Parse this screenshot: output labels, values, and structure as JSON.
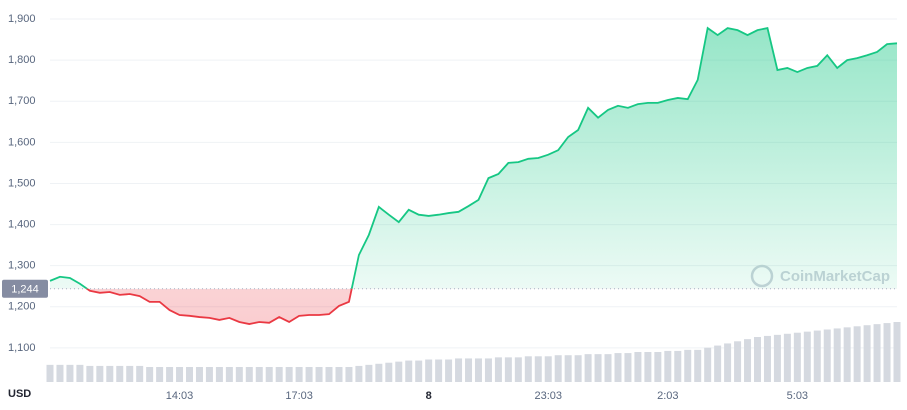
{
  "chart_data": {
    "type": "line",
    "currency": "USD",
    "watermark": "CoinMarketCap",
    "categories": [
      null,
      null,
      null,
      null,
      null,
      null,
      null,
      null,
      null,
      null,
      null,
      null,
      null,
      "14:03",
      null,
      null,
      null,
      null,
      null,
      null,
      null,
      null,
      null,
      null,
      null,
      "17:03",
      null,
      null,
      null,
      null,
      null,
      null,
      null,
      null,
      null,
      null,
      null,
      null,
      "8",
      null,
      null,
      null,
      null,
      null,
      null,
      null,
      null,
      null,
      null,
      null,
      "23:03",
      null,
      null,
      null,
      null,
      null,
      null,
      null,
      null,
      null,
      null,
      null,
      "2:03",
      null,
      null,
      null,
      null,
      null,
      null,
      null,
      null,
      null,
      null,
      null,
      null,
      "5:03",
      null,
      null,
      null,
      null,
      null,
      null,
      null,
      null,
      null,
      null
    ],
    "series": [
      {
        "name": "Price",
        "values": [
          1263,
          1273,
          1270,
          1256,
          1239,
          1234,
          1236,
          1229,
          1231,
          1226,
          1212,
          1212,
          1192,
          1180,
          1178,
          1175,
          1173,
          1168,
          1173,
          1163,
          1158,
          1163,
          1161,
          1175,
          1163,
          1178,
          1180,
          1180,
          1182,
          1202,
          1212,
          1326,
          1375,
          1443,
          1424,
          1406,
          1436,
          1424,
          1421,
          1424,
          1428,
          1431,
          1445,
          1460,
          1513,
          1523,
          1550,
          1552,
          1560,
          1562,
          1570,
          1581,
          1613,
          1630,
          1684,
          1660,
          1679,
          1689,
          1684,
          1693,
          1696,
          1696,
          1703,
          1708,
          1705,
          1752,
          1878,
          1861,
          1878,
          1873,
          1861,
          1873,
          1878,
          1776,
          1781,
          1771,
          1781,
          1786,
          1812,
          1781,
          1800,
          1805,
          1812,
          1820,
          1839,
          1841
        ]
      },
      {
        "name": "Volume",
        "values": [
          16,
          16,
          16,
          16,
          15,
          15,
          15,
          15,
          15,
          15,
          14,
          14,
          14,
          14,
          14,
          14,
          14,
          14,
          14,
          14,
          14,
          14,
          14,
          14,
          14,
          14,
          14,
          14,
          14,
          14,
          14,
          15,
          16,
          17,
          18,
          19,
          20,
          20,
          21,
          21,
          21,
          22,
          22,
          22,
          22,
          23,
          23,
          23,
          24,
          24,
          24,
          25,
          25,
          25,
          26,
          26,
          26,
          27,
          27,
          28,
          28,
          28,
          29,
          29,
          30,
          30,
          32,
          34,
          36,
          38,
          40,
          42,
          43,
          44,
          45,
          46,
          47,
          48,
          49,
          50,
          51,
          52,
          53,
          54,
          55,
          56
        ]
      }
    ],
    "up_color": "#16c784",
    "down_color": "#ea3943",
    "volume_color": "#d5d9e0",
    "baseline": {
      "value": 1244,
      "label": "1,244"
    },
    "ylim": [
      1017,
      1922
    ],
    "yticks": [
      {
        "value": 1100,
        "label": "1,100"
      },
      {
        "value": 1200,
        "label": "1,200"
      },
      {
        "value": 1300,
        "label": "1,300"
      },
      {
        "value": 1400,
        "label": "1,400"
      },
      {
        "value": 1500,
        "label": "1,500"
      },
      {
        "value": 1600,
        "label": "1,600"
      },
      {
        "value": 1700,
        "label": "1,700"
      },
      {
        "value": 1800,
        "label": "1,800"
      },
      {
        "value": 1900,
        "label": "1,900"
      }
    ],
    "grid": true
  }
}
